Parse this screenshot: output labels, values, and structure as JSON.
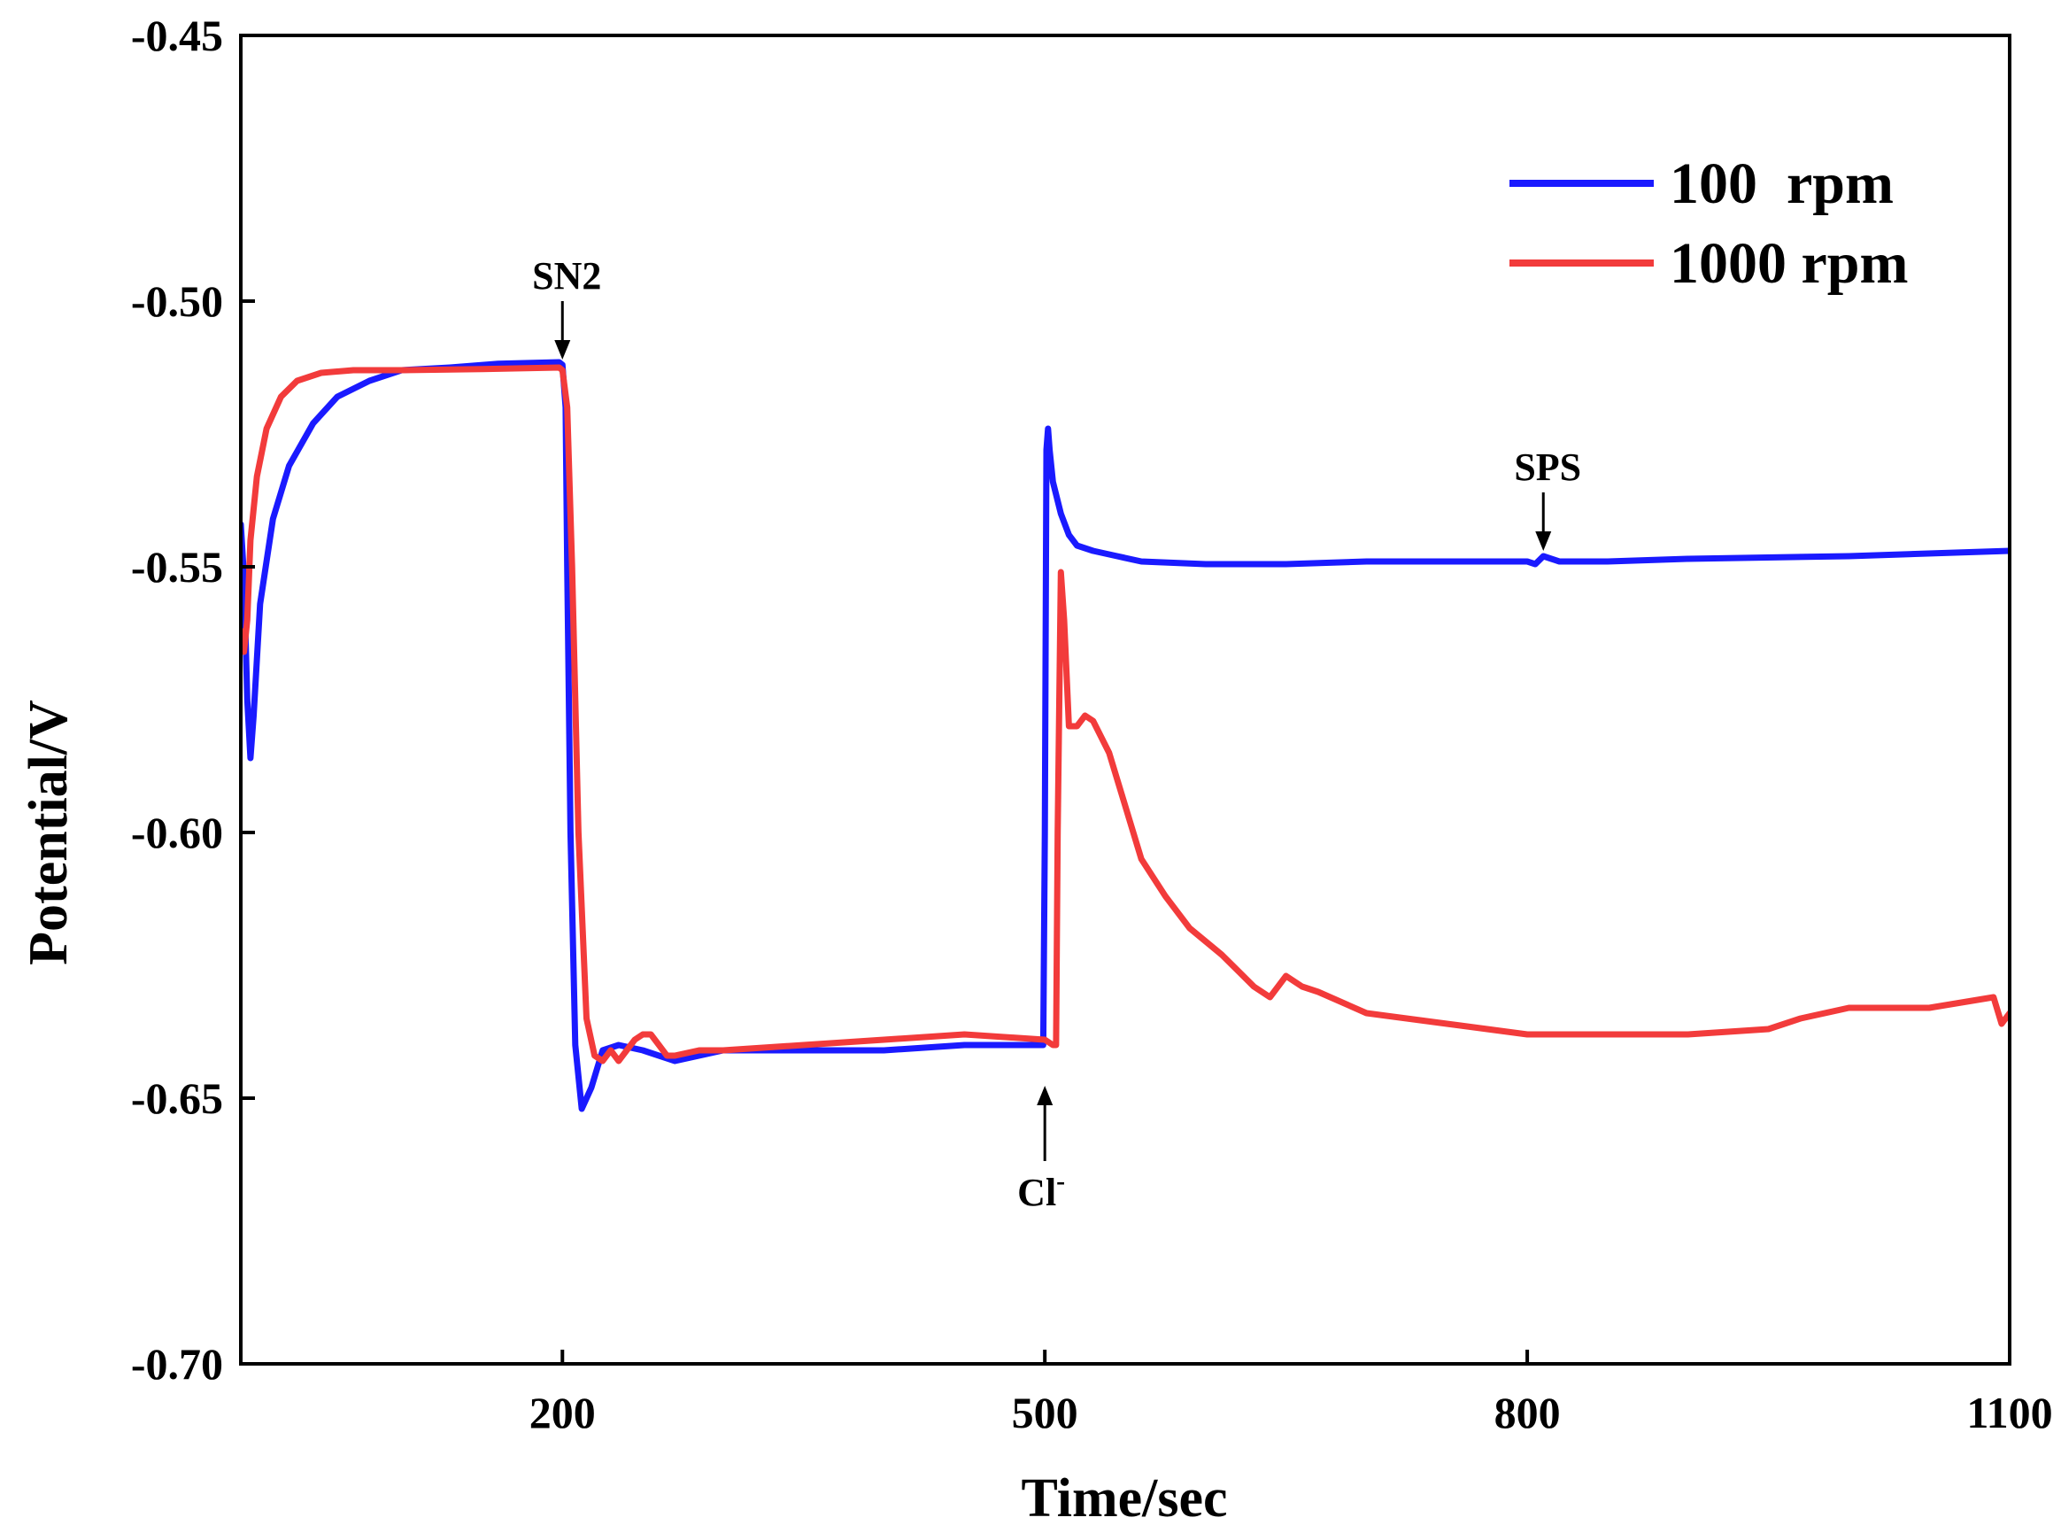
{
  "chart_data": {
    "type": "line",
    "title": "",
    "xlabel": "Time/sec",
    "ylabel": "Potential/V",
    "xlim": [
      0,
      1100
    ],
    "ylim": [
      -0.7,
      -0.45
    ],
    "xticks": [
      200,
      500,
      800,
      1100
    ],
    "xtick_labels": [
      "200",
      "500",
      "800",
      "1100"
    ],
    "yticks": [
      -0.45,
      -0.5,
      -0.55,
      -0.6,
      -0.65,
      -0.7
    ],
    "ytick_labels": [
      "-0.45",
      "-0.50",
      "-0.55",
      "-0.60",
      "-0.65",
      "-0.70"
    ],
    "grid": false,
    "legend_position": "top-right",
    "series": [
      {
        "name": "100  rpm",
        "color": "#1a1aff",
        "x": [
          0,
          2,
          4,
          6,
          8,
          12,
          20,
          30,
          45,
          60,
          80,
          100,
          130,
          160,
          198,
          200,
          202,
          203,
          205,
          208,
          212,
          218,
          225,
          235,
          250,
          270,
          300,
          350,
          400,
          450,
          499,
          500,
          501,
          502,
          503,
          505,
          510,
          515,
          520,
          530,
          545,
          560,
          600,
          650,
          700,
          750,
          800,
          805,
          810,
          815,
          820,
          850,
          900,
          1000,
          1100
        ],
        "y": [
          -0.542,
          -0.552,
          -0.575,
          -0.586,
          -0.578,
          -0.557,
          -0.541,
          -0.531,
          -0.523,
          -0.518,
          -0.515,
          -0.513,
          -0.5125,
          -0.5118,
          -0.5115,
          -0.512,
          -0.52,
          -0.55,
          -0.6,
          -0.64,
          -0.652,
          -0.648,
          -0.641,
          -0.64,
          -0.641,
          -0.643,
          -0.641,
          -0.641,
          -0.641,
          -0.64,
          -0.64,
          -0.6,
          -0.528,
          -0.524,
          -0.528,
          -0.534,
          -0.54,
          -0.544,
          -0.546,
          -0.547,
          -0.548,
          -0.549,
          -0.5495,
          -0.5495,
          -0.549,
          -0.549,
          -0.549,
          -0.5495,
          -0.548,
          -0.5485,
          -0.549,
          -0.549,
          -0.5485,
          -0.548,
          -0.547
        ]
      },
      {
        "name": "1000 rpm",
        "color": "#f23b3b",
        "x": [
          0,
          2,
          4,
          6,
          10,
          16,
          25,
          35,
          50,
          70,
          100,
          150,
          198,
          200,
          203,
          206,
          210,
          215,
          220,
          225,
          230,
          235,
          240,
          245,
          250,
          255,
          260,
          265,
          270,
          285,
          300,
          350,
          400,
          450,
          500,
          505,
          507,
          508,
          510,
          512,
          515,
          520,
          525,
          530,
          540,
          550,
          560,
          575,
          590,
          610,
          630,
          640,
          650,
          660,
          670,
          700,
          750,
          800,
          850,
          900,
          950,
          960,
          970,
          1000,
          1050,
          1090,
          1095,
          1100
        ],
        "y": [
          -0.562,
          -0.566,
          -0.56,
          -0.545,
          -0.533,
          -0.524,
          -0.518,
          -0.515,
          -0.5135,
          -0.513,
          -0.513,
          -0.5128,
          -0.5125,
          -0.513,
          -0.52,
          -0.55,
          -0.6,
          -0.635,
          -0.642,
          -0.643,
          -0.641,
          -0.643,
          -0.641,
          -0.639,
          -0.638,
          -0.638,
          -0.64,
          -0.642,
          -0.642,
          -0.641,
          -0.641,
          -0.64,
          -0.639,
          -0.638,
          -0.639,
          -0.64,
          -0.64,
          -0.6,
          -0.551,
          -0.56,
          -0.58,
          -0.58,
          -0.578,
          -0.579,
          -0.585,
          -0.595,
          -0.605,
          -0.612,
          -0.618,
          -0.623,
          -0.629,
          -0.631,
          -0.627,
          -0.629,
          -0.63,
          -0.634,
          -0.636,
          -0.638,
          -0.638,
          -0.638,
          -0.637,
          -0.636,
          -0.635,
          -0.633,
          -0.633,
          -0.631,
          -0.636,
          -0.634
        ]
      }
    ],
    "annotations": [
      {
        "label": "SN2",
        "x": 200,
        "y": -0.512,
        "text_position": "above"
      },
      {
        "label": "Cl",
        "superscript": "-",
        "x": 500,
        "y": -0.646,
        "text_position": "below"
      },
      {
        "label": "SPS",
        "x": 810,
        "y": -0.548,
        "text_position": "above"
      }
    ]
  }
}
